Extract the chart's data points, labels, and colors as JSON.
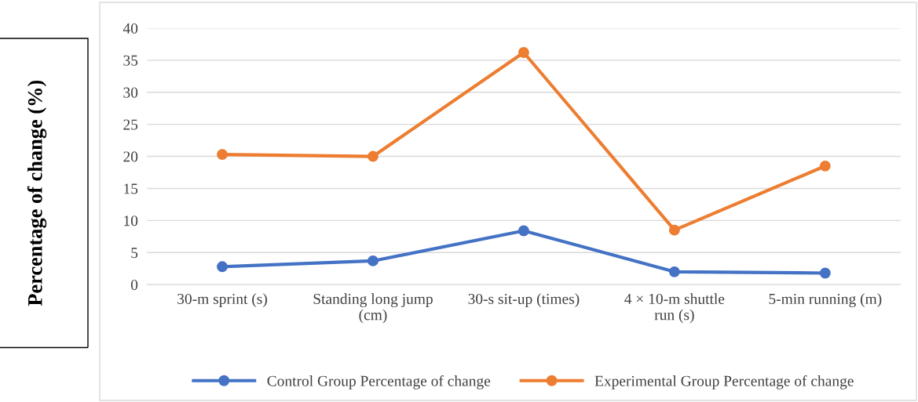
{
  "chart_data": {
    "type": "line",
    "ylabel": "Percentage of change (%)",
    "categories": [
      "30-m sprint (s)",
      "Standing long jump (cm)",
      "30-s sit-up (times)",
      "4 × 10-m shuttle run (s)",
      "5-min running (m)"
    ],
    "series": [
      {
        "name": "Control Group Percentage of change",
        "color": "#4472c4",
        "values": [
          2.8,
          3.7,
          8.4,
          2.0,
          1.8
        ]
      },
      {
        "name": "Experimental Group Percentage of change",
        "color": "#ed7d31",
        "values": [
          20.3,
          20.0,
          36.2,
          8.5,
          18.5
        ]
      }
    ],
    "ylim": [
      0,
      40
    ],
    "yticks": [
      0,
      5,
      10,
      15,
      20,
      25,
      30,
      35,
      40
    ],
    "grid": "y",
    "legend": "bottom",
    "marker": "circle",
    "line_style": "solid"
  }
}
